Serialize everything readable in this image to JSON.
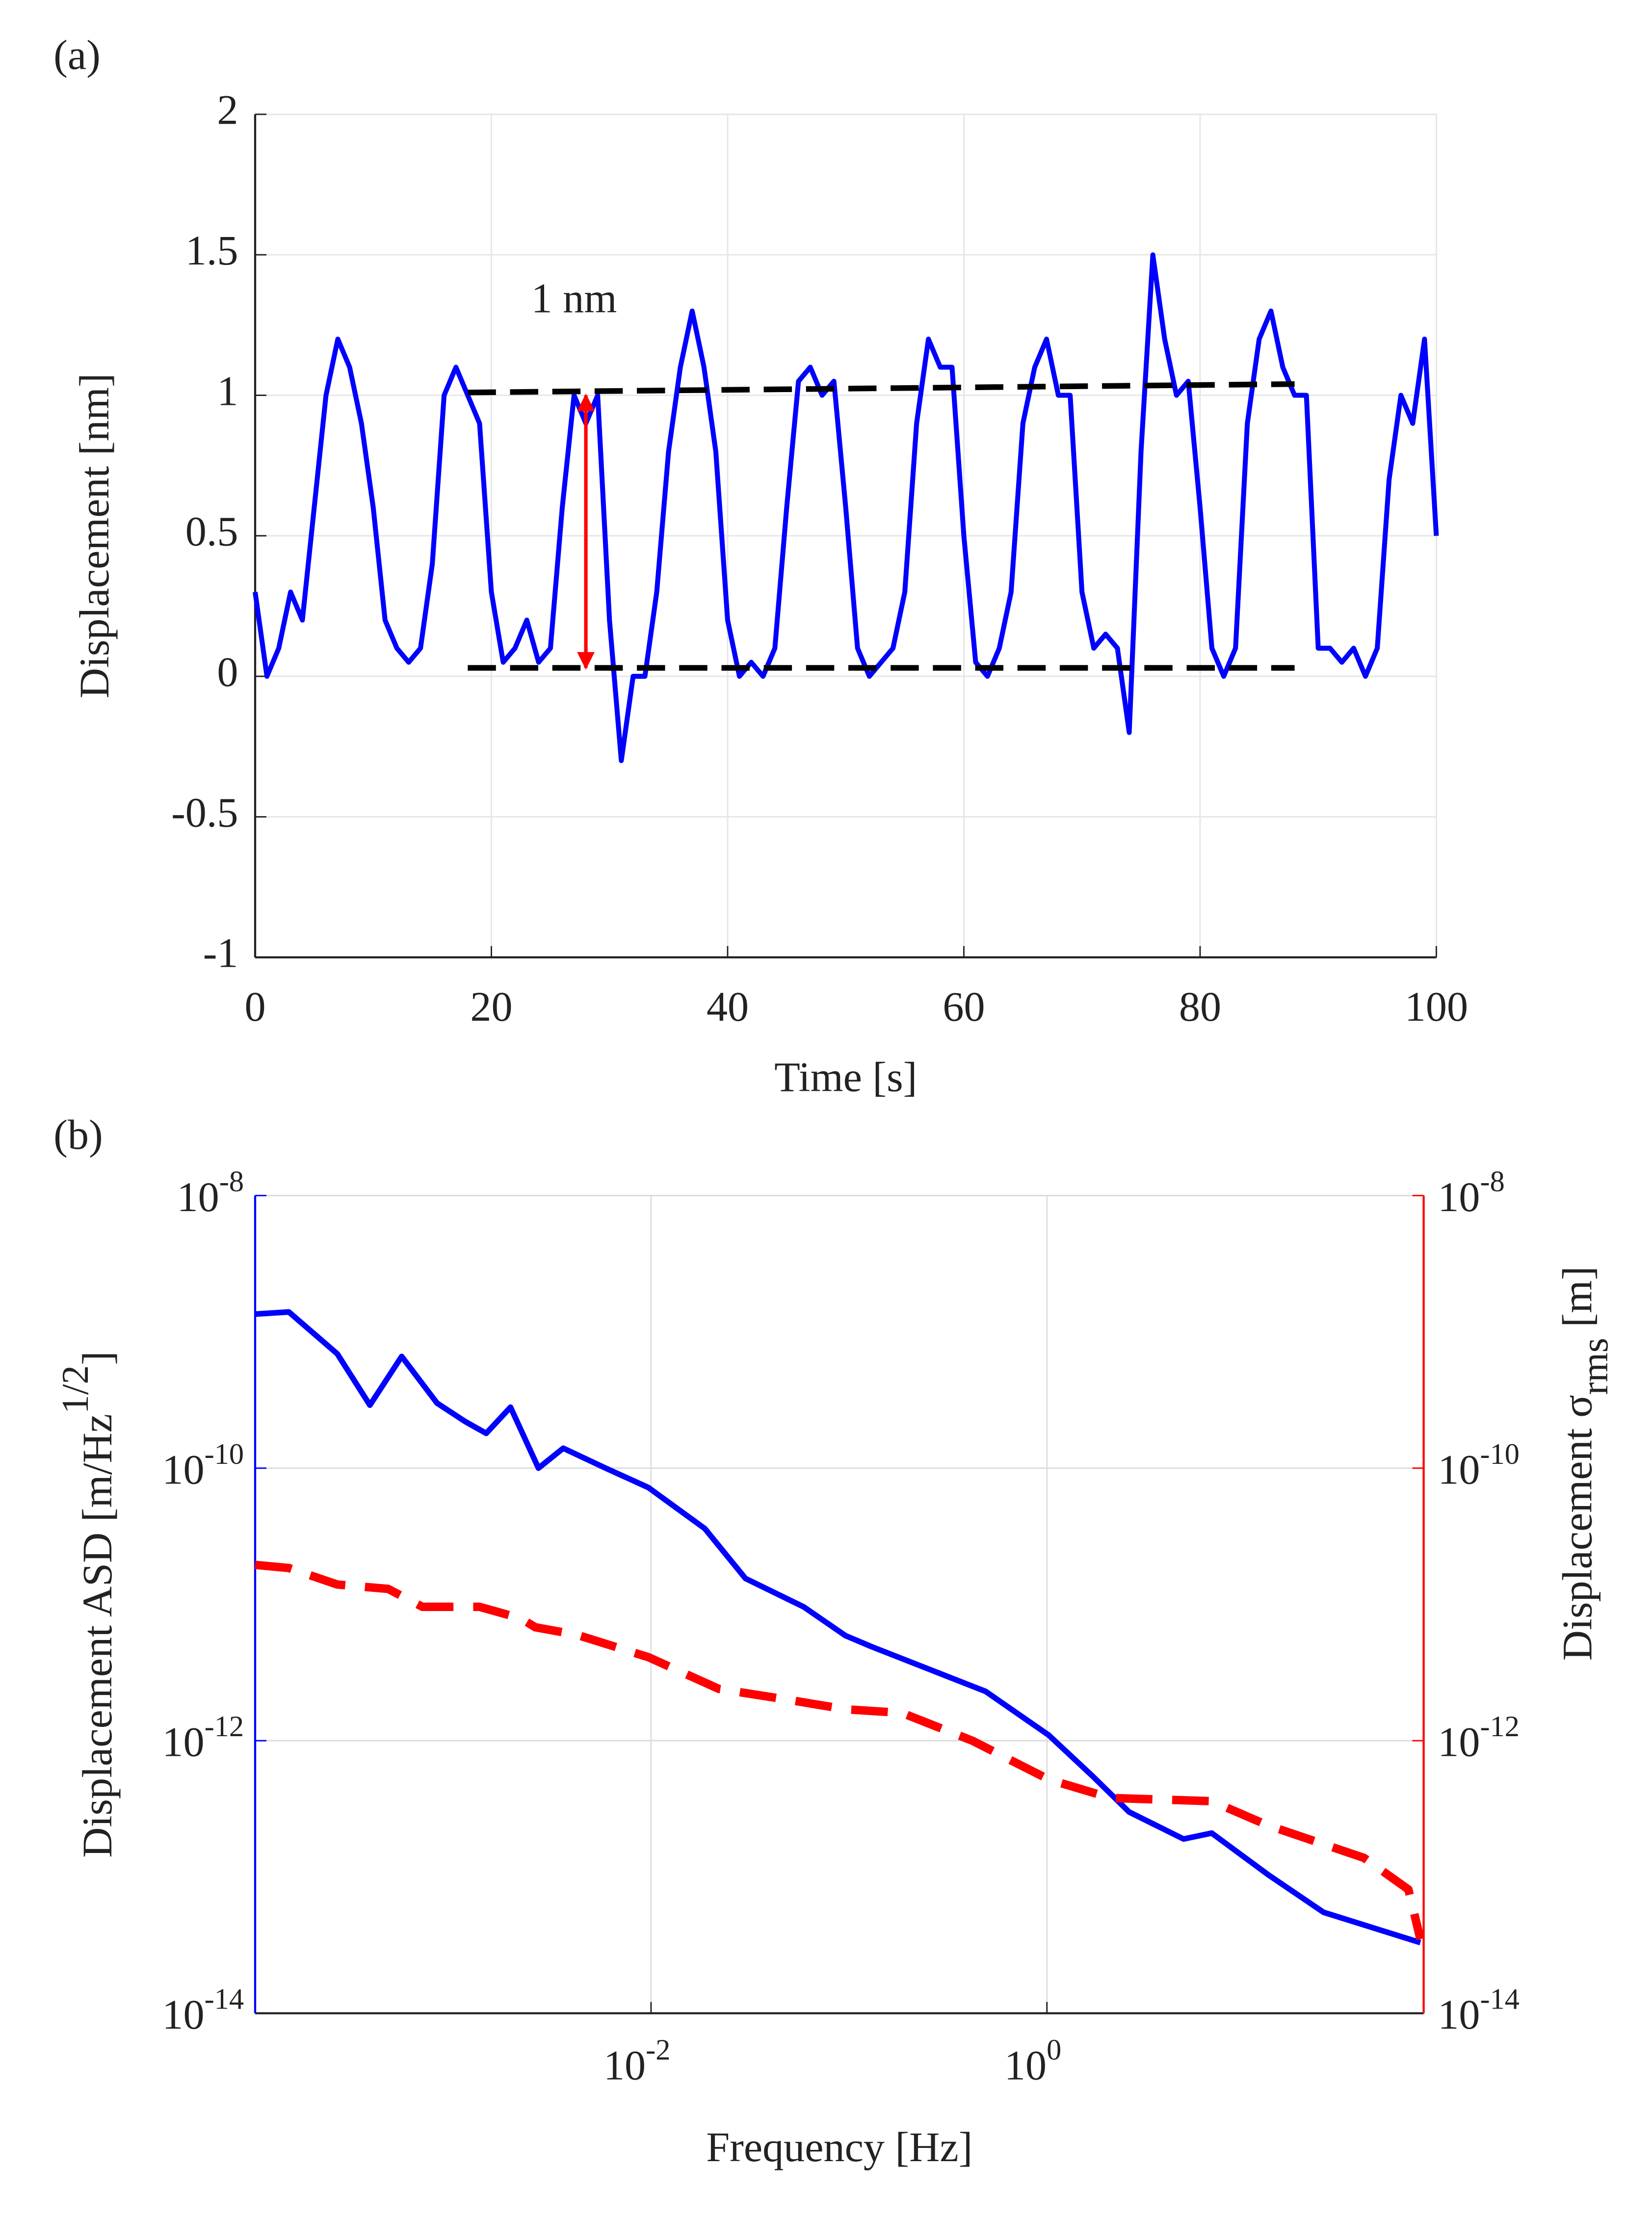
{
  "chart_data": [
    {
      "type": "line",
      "panel_label": "(a)",
      "x_label": "Time [s]",
      "y_label": "Displacement  [nm]",
      "x": [
        0,
        1,
        2,
        3,
        4,
        5,
        6,
        7,
        8,
        9,
        10,
        11,
        12,
        13,
        14,
        15,
        16,
        17,
        18,
        19,
        20,
        21,
        22,
        23,
        24,
        25,
        26,
        27,
        28,
        29,
        30,
        31,
        32,
        33,
        34,
        35,
        36,
        37,
        38,
        39,
        40,
        41,
        42,
        43,
        44,
        45,
        46,
        47,
        48,
        49,
        50,
        51,
        52,
        53,
        54,
        55,
        56,
        57,
        58,
        59,
        60,
        61,
        62,
        63,
        64,
        65,
        66,
        67,
        68,
        69,
        70,
        71,
        72,
        73,
        74,
        75,
        76,
        77,
        78,
        79,
        80,
        81,
        82,
        83,
        84,
        85,
        86,
        87,
        88,
        89,
        90,
        91,
        92,
        93,
        94,
        95,
        96,
        97,
        98,
        99,
        100
      ],
      "series": [
        {
          "color": "#0000ff",
          "values": [
            0.3,
            0.0,
            0.1,
            0.3,
            0.2,
            0.6,
            1.0,
            1.2,
            1.1,
            0.9,
            0.6,
            0.2,
            0.1,
            0.05,
            0.1,
            0.4,
            1.0,
            1.1,
            1.0,
            0.9,
            0.3,
            0.05,
            0.1,
            0.2,
            0.05,
            0.1,
            0.6,
            1.0,
            0.9,
            1.0,
            0.2,
            -0.3,
            0.0,
            0.0,
            0.3,
            0.8,
            1.1,
            1.3,
            1.1,
            0.8,
            0.2,
            0.0,
            0.05,
            0.0,
            0.1,
            0.6,
            1.05,
            1.1,
            1.0,
            1.05,
            0.6,
            0.1,
            0.0,
            0.05,
            0.1,
            0.3,
            0.9,
            1.2,
            1.1,
            1.1,
            0.5,
            0.05,
            0.0,
            0.1,
            0.3,
            0.9,
            1.1,
            1.2,
            1.0,
            1.0,
            0.3,
            0.1,
            0.15,
            0.1,
            -0.2,
            0.8,
            1.5,
            1.2,
            1.0,
            1.05,
            0.6,
            0.1,
            0.0,
            0.1,
            0.9,
            1.2,
            1.3,
            1.1,
            1.0,
            1.0,
            0.1,
            0.1,
            0.05,
            0.1,
            0.0,
            0.1,
            0.7,
            1.0,
            0.9,
            1.2,
            0.5
          ]
        }
      ],
      "guides": [
        {
          "color": "#000000",
          "x": [
            18,
            88
          ],
          "y": [
            1.01,
            1.04
          ]
        },
        {
          "color": "#000000",
          "x": [
            18,
            88
          ],
          "y": [
            0.03,
            0.03
          ]
        }
      ],
      "arrow": {
        "color": "#ff0000",
        "x": [
          28,
          28
        ],
        "y": [
          0.03,
          1.0
        ]
      },
      "annotation": {
        "text": "1 nm",
        "x": 27,
        "y": 1.33,
        "color": "#ff0000"
      },
      "xlim": [
        0,
        100
      ],
      "xticks": [
        0,
        20,
        40,
        60,
        80,
        100
      ],
      "ylim": [
        -1,
        2
      ],
      "yticks": [
        -1,
        -0.5,
        0,
        0.5,
        1,
        1.5,
        2
      ],
      "grid": true
    },
    {
      "type": "loglog",
      "panel_label": "(b)",
      "x_label": "Frequency [Hz]",
      "y_label": {
        "text": "Displacement ASD [m/Hz",
        "sup": "1/2",
        "end": "]"
      },
      "y2_label": {
        "text": "Displacement σ",
        "sub": "rms",
        "end": " [m]"
      },
      "y_axis_color": "#0000ff",
      "y2_axis_color": "#ff0000",
      "series": [
        {
          "color": "#0000ff",
          "dashed": false,
          "x": [
            0.0001,
            0.000148,
            0.00026,
            0.00038,
            0.00055,
            0.00083,
            0.00115,
            0.00147,
            0.00195,
            0.0027,
            0.0036,
            0.0059,
            0.0097,
            0.0187,
            0.03,
            0.059,
            0.096,
            0.13,
            0.26,
            0.49,
            1.02,
            1.7,
            2.6,
            4.9,
            6.8,
            13.1,
            25,
            77
          ],
          "values": [
            1.35e-09,
            1.4e-09,
            6.9e-10,
            2.9e-10,
            6.6e-10,
            3e-10,
            2.2e-10,
            1.8e-10,
            2.8e-10,
            1e-10,
            1.4e-10,
            1e-10,
            7.2e-11,
            3.6e-11,
            1.55e-11,
            9.6e-12,
            5.9e-12,
            4.9e-12,
            3.3e-12,
            2.3e-12,
            1.1e-12,
            5.5e-13,
            3e-13,
            1.9e-13,
            2.1e-13,
            1.04e-13,
            5.5e-14,
            3.3e-14
          ]
        },
        {
          "color": "#ff0000",
          "dashed": true,
          "axis": "y2",
          "x": [
            0.0001,
            0.000148,
            0.00026,
            0.00047,
            0.0007,
            0.00136,
            0.0022,
            0.0026,
            0.0042,
            0.0097,
            0.022,
            0.049,
            0.096,
            0.185,
            0.42,
            1.02,
            2.1,
            6.8,
            13,
            40,
            67,
            77
          ],
          "values": [
            1.95e-11,
            1.85e-11,
            1.4e-11,
            1.3e-11,
            9.6e-12,
            9.6e-12,
            7.9e-12,
            6.8e-12,
            6e-12,
            4.1e-12,
            2.4e-12,
            2e-12,
            1.7e-12,
            1.6e-12,
            1e-12,
            5.2e-13,
            3.8e-13,
            3.6e-13,
            2.4e-13,
            1.38e-13,
            8.1e-14,
            3.5e-14
          ]
        }
      ],
      "log_x": true,
      "log_y": true,
      "xlim": [
        0.0001,
        80
      ],
      "xticks": [
        {
          "value": 0.01,
          "label": "10",
          "exponent": "-2"
        },
        {
          "value": 1,
          "label": "10",
          "exponent": "0"
        }
      ],
      "ylim": [
        1e-14,
        1e-08
      ],
      "yticks": [
        {
          "value": 1e-14,
          "label": "10",
          "exponent": "-14"
        },
        {
          "value": 1e-12,
          "label": "10",
          "exponent": "-12"
        },
        {
          "value": 1e-10,
          "label": "10",
          "exponent": "-10"
        },
        {
          "value": 1e-08,
          "label": "10",
          "exponent": "-8"
        }
      ],
      "y2lim": [
        1e-14,
        1e-08
      ],
      "y2ticks": [
        {
          "value": 1e-14,
          "label": "10",
          "exponent": "-14"
        },
        {
          "value": 1e-12,
          "label": "10",
          "exponent": "-12"
        },
        {
          "value": 1e-10,
          "label": "10",
          "exponent": "-10"
        },
        {
          "value": 1e-08,
          "label": "10",
          "exponent": "-8"
        }
      ],
      "grid": true
    }
  ]
}
